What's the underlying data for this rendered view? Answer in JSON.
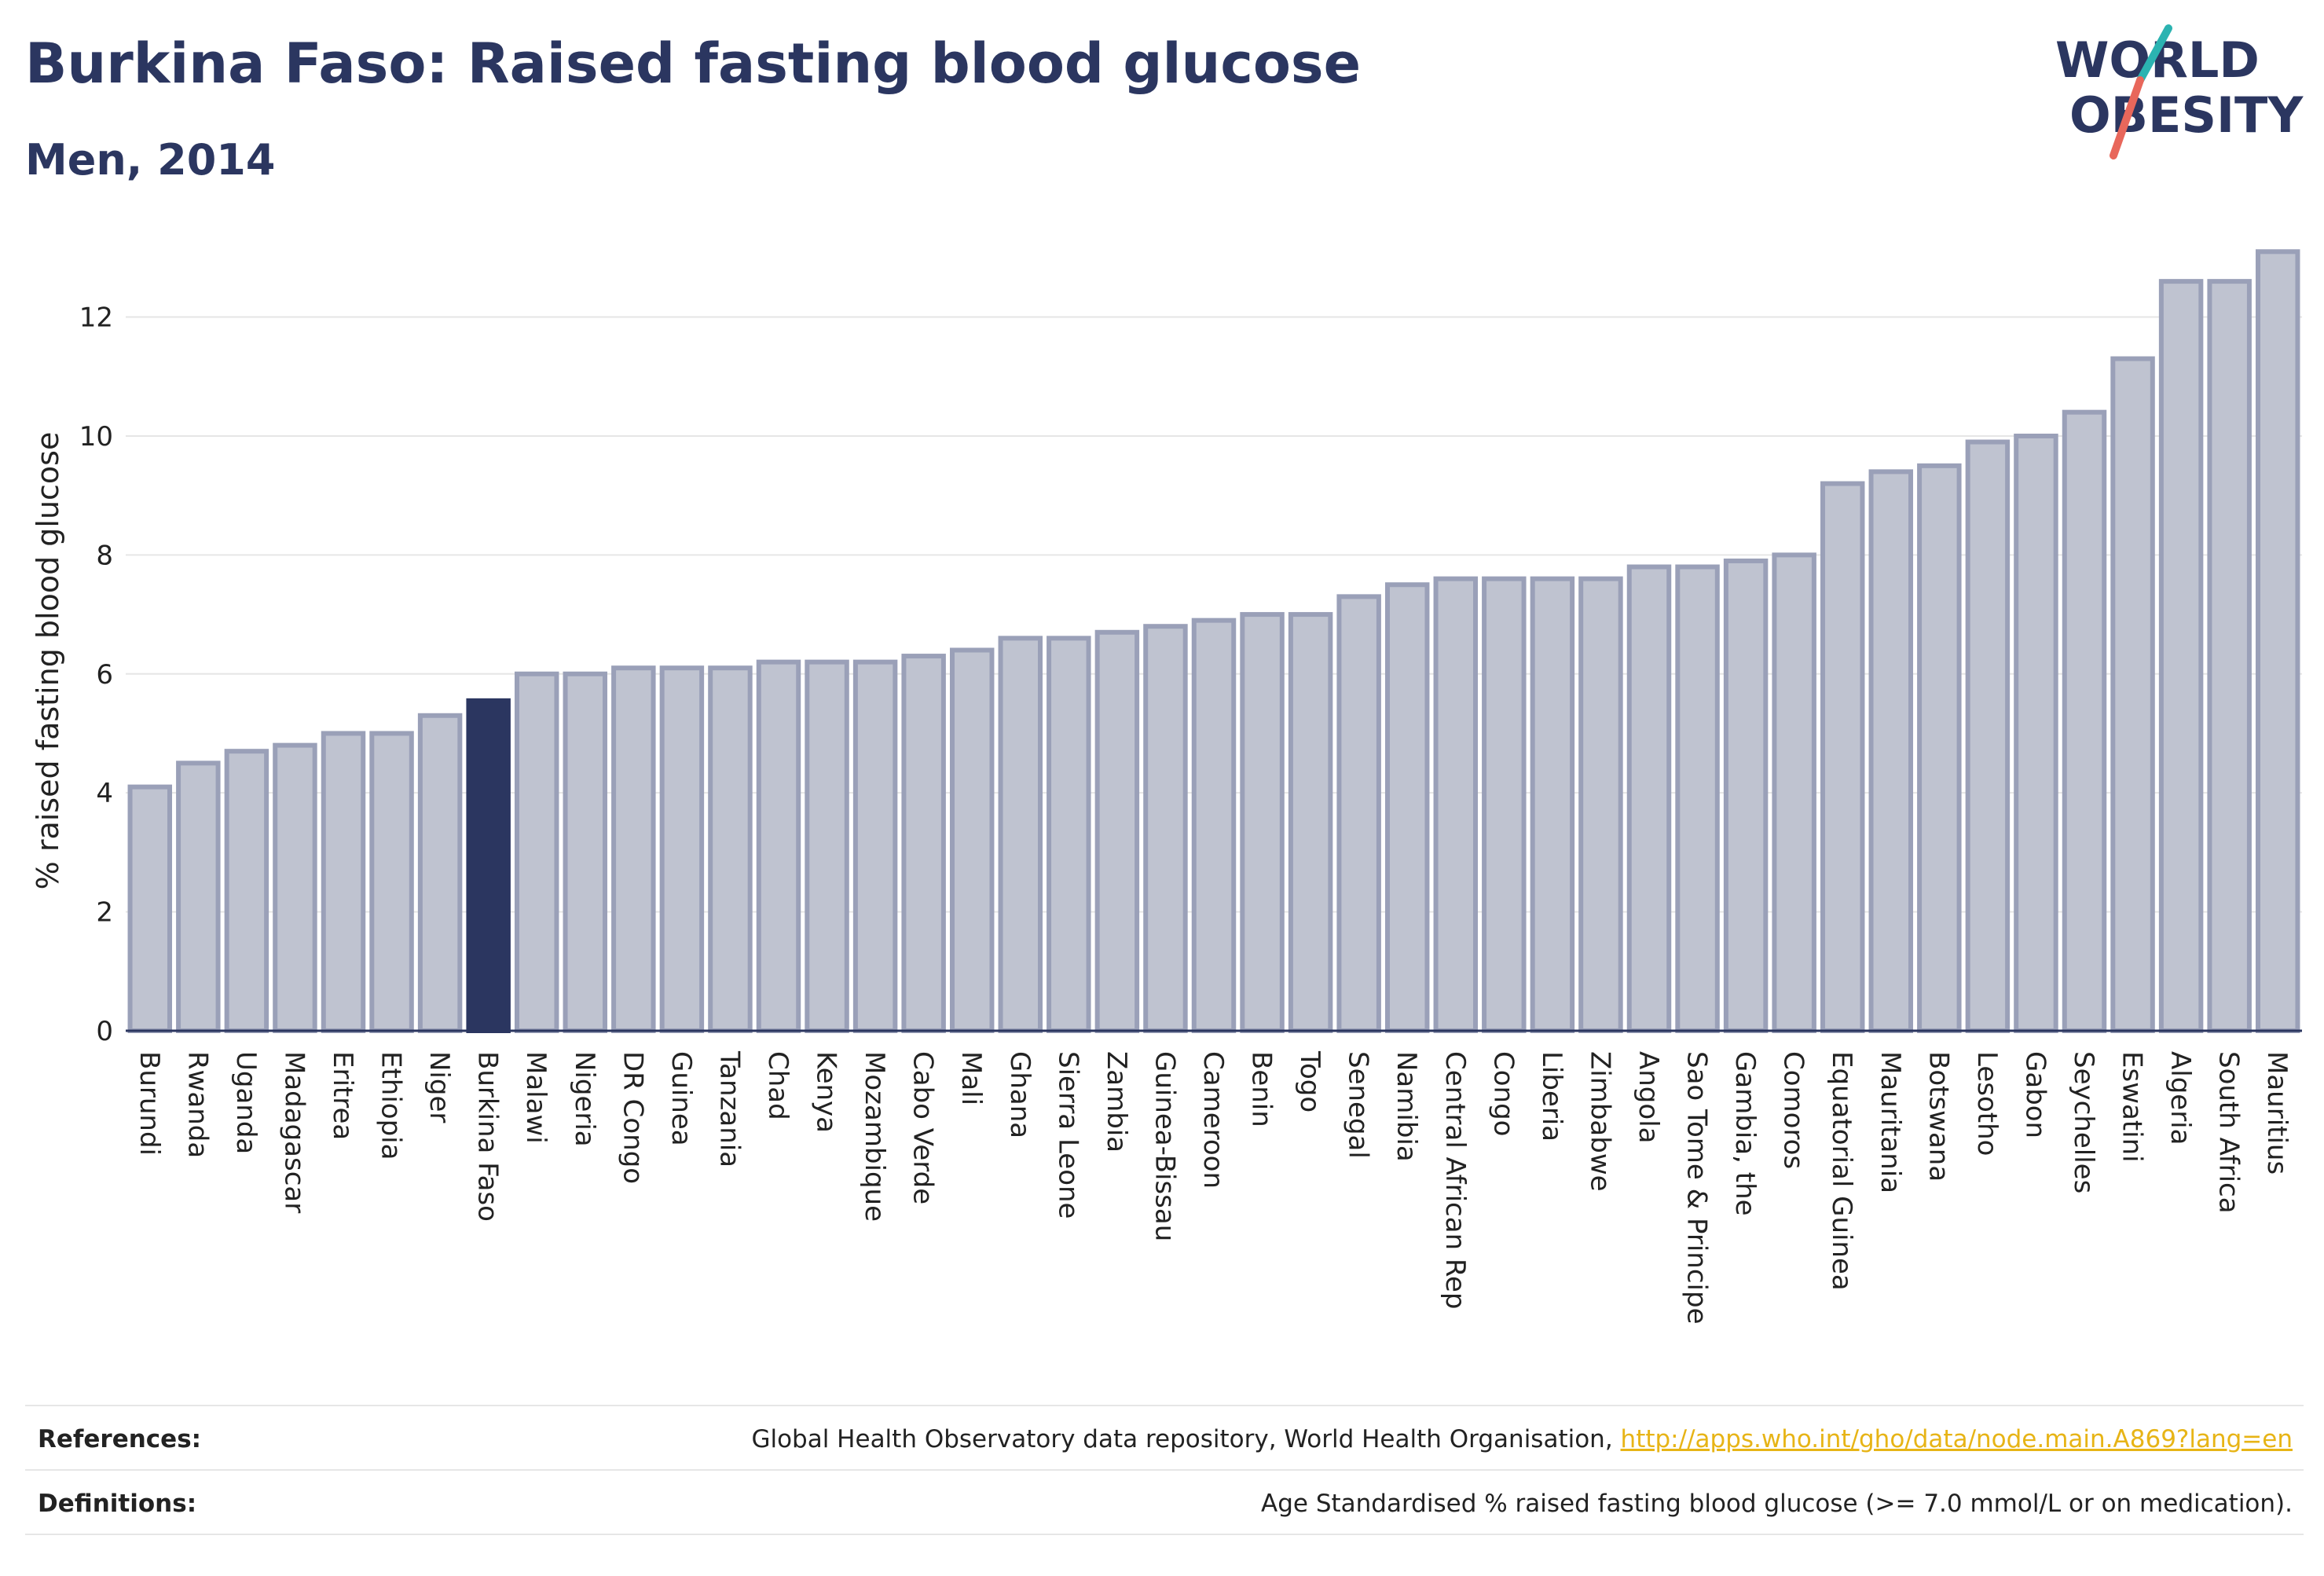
{
  "header": {
    "title": "Burkina Faso: Raised fasting blood glucose",
    "subtitle": "Men, 2014"
  },
  "logo": {
    "line1": "WORLD",
    "line2": "OBESITY",
    "colors": {
      "text": "#2b3660",
      "slash_teal": "#2bb3b1",
      "slash_coral": "#e8675b"
    }
  },
  "chart_data": {
    "type": "bar",
    "title": "Burkina Faso: Raised fasting blood glucose",
    "subtitle": "Men, 2014",
    "xlabel": "",
    "ylabel": "% raised fasting blood glucose",
    "ylim": [
      0,
      13.5
    ],
    "yticks": [
      0,
      2,
      4,
      6,
      8,
      10,
      12
    ],
    "grid": true,
    "highlight": "Burkina Faso",
    "colors": {
      "default_fill": "#bfc3d0",
      "default_stroke": "#9aa0b8",
      "highlight_fill": "#2b3660",
      "grid": "#e6e6e6",
      "axis": "#2b3660"
    },
    "categories": [
      "Burundi",
      "Rwanda",
      "Uganda",
      "Madagascar",
      "Eritrea",
      "Ethiopia",
      "Niger",
      "Burkina Faso",
      "Malawi",
      "Nigeria",
      "DR Congo",
      "Guinea",
      "Tanzania",
      "Chad",
      "Kenya",
      "Mozambique",
      "Cabo Verde",
      "Mali",
      "Ghana",
      "Sierra Leone",
      "Zambia",
      "Guinea-Bissau",
      "Cameroon",
      "Benin",
      "Togo",
      "Senegal",
      "Namibia",
      "Central African Rep",
      "Congo",
      "Liberia",
      "Zimbabwe",
      "Angola",
      "Sao Tome & Principe",
      "Gambia, the",
      "Comoros",
      "Equatorial Guinea",
      "Mauritania",
      "Botswana",
      "Lesotho",
      "Gabon",
      "Seychelles",
      "Eswatini",
      "Algeria",
      "South Africa",
      "Mauritius"
    ],
    "values": [
      4.1,
      4.5,
      4.7,
      4.8,
      5.0,
      5.0,
      5.3,
      5.55,
      6.0,
      6.0,
      6.1,
      6.1,
      6.1,
      6.2,
      6.2,
      6.2,
      6.3,
      6.4,
      6.6,
      6.6,
      6.7,
      6.8,
      6.9,
      7.0,
      7.0,
      7.3,
      7.5,
      7.6,
      7.6,
      7.6,
      7.6,
      7.8,
      7.8,
      7.9,
      8.0,
      9.2,
      9.4,
      9.5,
      9.9,
      10.0,
      10.4,
      11.3,
      12.6,
      12.6,
      13.1
    ]
  },
  "footer": {
    "references_label": "References:",
    "references_text": "Global Health Observatory data repository, World Health Organisation, ",
    "references_link": "http://apps.who.int/gho/data/node.main.A869?lang=en",
    "definitions_label": "Definitions:",
    "definitions_text": "Age Standardised % raised fasting blood glucose (>= 7.0 mmol/L or on medication)."
  }
}
